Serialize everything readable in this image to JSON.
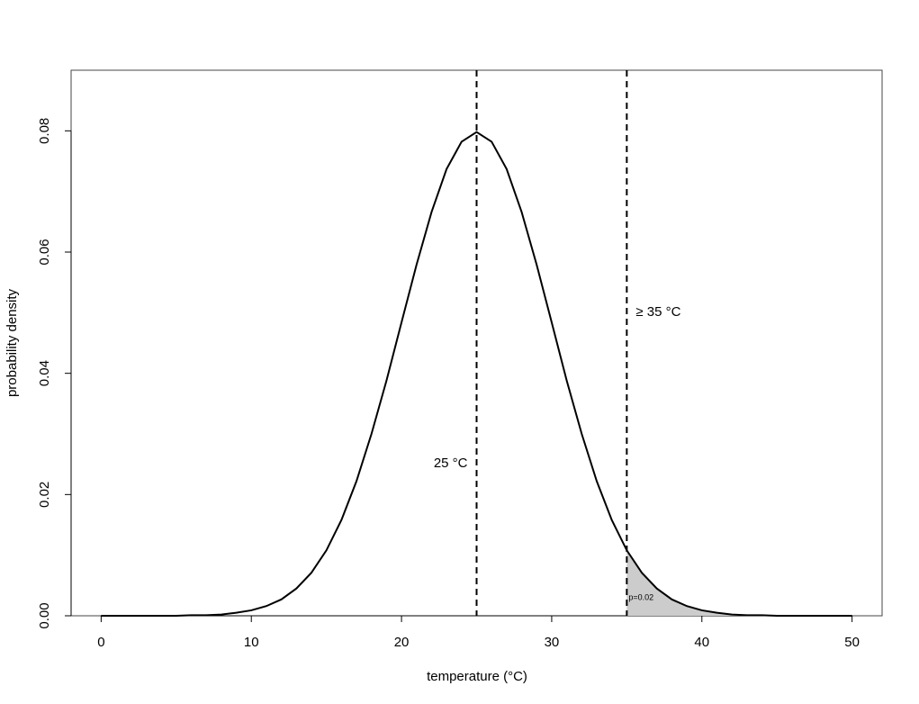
{
  "chart_data": {
    "type": "line",
    "x_label": "temperature (°C)",
    "y_label": "probability density",
    "x": [
      0,
      1,
      2,
      3,
      4,
      5,
      6,
      7,
      8,
      9,
      10,
      11,
      12,
      13,
      14,
      15,
      16,
      17,
      18,
      19,
      20,
      21,
      22,
      23,
      24,
      25,
      26,
      27,
      28,
      29,
      30,
      31,
      32,
      33,
      34,
      35,
      36,
      37,
      38,
      39,
      40,
      41,
      42,
      43,
      44,
      45,
      46,
      47,
      48,
      49,
      50
    ],
    "values": [
      0,
      0,
      0,
      0,
      0,
      0.0,
      0.0001,
      0.0001,
      0.0002,
      0.0005,
      0.0009,
      0.0016,
      0.0027,
      0.0045,
      0.0071,
      0.0108,
      0.0158,
      0.0222,
      0.03,
      0.0388,
      0.0484,
      0.0579,
      0.0666,
      0.0737,
      0.0782,
      0.0798,
      0.0782,
      0.0737,
      0.0666,
      0.0579,
      0.0484,
      0.0388,
      0.03,
      0.0222,
      0.0158,
      0.0108,
      0.0071,
      0.0045,
      0.0027,
      0.0016,
      0.0009,
      0.0005,
      0.0002,
      0.0001,
      0.0001,
      0.0,
      0,
      0,
      0,
      0,
      0
    ],
    "color": "#000000",
    "vlines": [
      25,
      35
    ],
    "shade_color": "#cccccc",
    "annotations": [
      "25 °C",
      "≥ 35 °C",
      "p=0.02"
    ],
    "xlim": [
      -2,
      52
    ],
    "ylim": [
      0,
      0.09
    ],
    "xticks": [
      0,
      10,
      20,
      30,
      40,
      50
    ],
    "yticks": [
      {
        "value": 0,
        "label": "0.00"
      },
      0.02,
      0.04,
      0.06,
      0.08
    ],
    "grid": false
  }
}
